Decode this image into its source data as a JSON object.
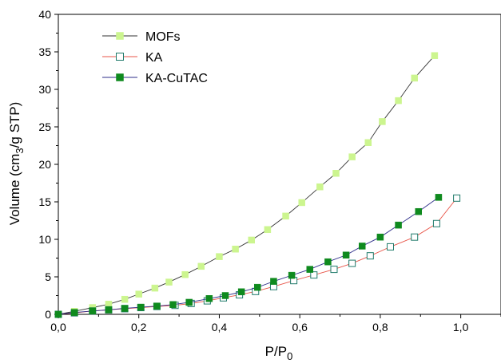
{
  "chart_data": {
    "type": "scatter",
    "xlabel": "P/P0",
    "xlabel_main": "P/P",
    "xlabel_sub": "0",
    "ylabel": "Volume (cm3/g STP)",
    "ylabel_pre": "Volume (cm",
    "ylabel_sub": "3",
    "ylabel_post": "/g STP)",
    "xlim": [
      0.0,
      1.1
    ],
    "ylim": [
      0,
      40
    ],
    "x_ticks": [
      "0,0",
      "0,2",
      "0,4",
      "0,6",
      "0,8",
      "1,0"
    ],
    "x_tick_values": [
      0.0,
      0.2,
      0.4,
      0.6,
      0.8,
      1.0
    ],
    "y_ticks": [
      "0",
      "5",
      "10",
      "15",
      "20",
      "25",
      "30",
      "35",
      "40"
    ],
    "y_tick_values": [
      0,
      5,
      10,
      15,
      20,
      25,
      30,
      35,
      40
    ],
    "grid": false,
    "legend_position": "top-left",
    "series": [
      {
        "name": "MOFs",
        "marker": "filled-square",
        "marker_color": "#ccf58f",
        "line_color": "#333333",
        "x": [
          0.0,
          0.04,
          0.085,
          0.125,
          0.165,
          0.2,
          0.24,
          0.275,
          0.315,
          0.355,
          0.4,
          0.44,
          0.48,
          0.52,
          0.565,
          0.605,
          0.65,
          0.69,
          0.73,
          0.77,
          0.805,
          0.845,
          0.885,
          0.935
        ],
        "y": [
          0.0,
          0.4,
          0.9,
          1.35,
          2.0,
          2.7,
          3.5,
          4.3,
          5.3,
          6.4,
          7.7,
          8.7,
          9.9,
          11.3,
          13.1,
          14.9,
          17.0,
          18.8,
          21.0,
          22.9,
          25.7,
          28.5,
          31.5,
          34.5
        ]
      },
      {
        "name": "KA",
        "marker": "open-square",
        "marker_color": "#1f7a6a",
        "line_color": "#e8564a",
        "x": [
          0.0,
          0.04,
          0.085,
          0.125,
          0.165,
          0.205,
          0.245,
          0.29,
          0.33,
          0.37,
          0.41,
          0.45,
          0.49,
          0.535,
          0.585,
          0.635,
          0.685,
          0.73,
          0.775,
          0.825,
          0.885,
          0.94,
          0.99
        ],
        "y": [
          0.0,
          0.2,
          0.45,
          0.6,
          0.75,
          0.9,
          1.05,
          1.2,
          1.45,
          1.8,
          2.2,
          2.6,
          3.05,
          3.7,
          4.5,
          5.25,
          6.0,
          6.8,
          7.8,
          9.0,
          10.3,
          12.1,
          15.5
        ]
      },
      {
        "name": "KA-CuTAC",
        "marker": "filled-square",
        "marker_color": "#0f8a1e",
        "line_color": "#2e2e8a",
        "x": [
          0.0,
          0.04,
          0.085,
          0.125,
          0.165,
          0.205,
          0.245,
          0.285,
          0.325,
          0.375,
          0.415,
          0.455,
          0.495,
          0.535,
          0.58,
          0.625,
          0.67,
          0.715,
          0.755,
          0.8,
          0.845,
          0.895,
          0.945
        ],
        "y": [
          0.0,
          0.25,
          0.45,
          0.6,
          0.8,
          0.95,
          1.1,
          1.3,
          1.6,
          2.1,
          2.5,
          3.0,
          3.6,
          4.4,
          5.2,
          6.0,
          7.0,
          7.9,
          9.1,
          10.3,
          11.9,
          13.7,
          15.6
        ]
      }
    ]
  }
}
